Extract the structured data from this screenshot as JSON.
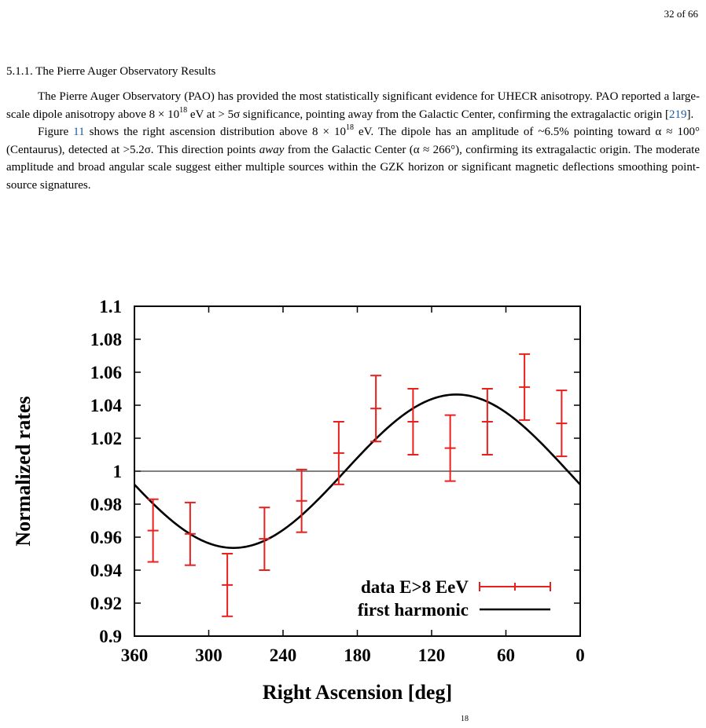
{
  "header": {
    "page_number": "32 of 66"
  },
  "section": {
    "heading": "5.1.1. The Pierre Auger Observatory Results"
  },
  "paragraphs": {
    "p1": {
      "t1": "The Pierre Auger Observatory (PAO) has provided the most statistically significant evidence for UHECR anisotropy. PAO reported a large-scale dipole anisotropy above 8 × 10",
      "exp": "18",
      "t2": " eV at > 5σ significance, pointing away from the Galactic Center, confirming the extragalactic origin [",
      "cite": "219",
      "t3": "]."
    },
    "p2": {
      "t1": "Figure ",
      "figref": "11",
      "t2": " shows the right ascension distribution above 8 × 10",
      "exp": "18",
      "t3": " eV. The dipole has an amplitude of ~6.5% pointing toward α ≈ 100° (Centaurus), detected at >5.2σ. This direction points ",
      "em": "away",
      "t4": " from the Galactic Center (α ≈ 266°), confirming its extragalactic origin.  The moderate amplitude and broad angular scale suggest either multiple sources within the GZK horizon or significant magnetic deflections smoothing point-source signatures."
    }
  },
  "caption_fragment": "18",
  "chart_data": {
    "type": "scatter",
    "xlabel": "Right Ascension [deg]",
    "ylabel": "Normalized rates",
    "xlim": [
      360,
      0
    ],
    "ylim": [
      0.9,
      1.1
    ],
    "x_ticks": [
      "360",
      "300",
      "240",
      "180",
      "120",
      "60",
      "0"
    ],
    "y_ticks": [
      "0.9",
      "0.92",
      "0.94",
      "0.96",
      "0.98",
      "1",
      "1.02",
      "1.04",
      "1.06",
      "1.08",
      "1.1"
    ],
    "reference_line_y": 1.0,
    "legend_position": "bottom-right",
    "colors": {
      "data": "#e8201e",
      "harmonic": "#000000"
    },
    "series": [
      {
        "name": "data E>8 EeV",
        "x": [
          345,
          315,
          285,
          255,
          225,
          195,
          165,
          135,
          105,
          75,
          45,
          15
        ],
        "y": [
          0.964,
          0.962,
          0.931,
          0.959,
          0.982,
          1.011,
          1.038,
          1.03,
          1.014,
          1.03,
          1.051,
          1.029
        ],
        "err": [
          0.019,
          0.019,
          0.019,
          0.019,
          0.019,
          0.019,
          0.02,
          0.02,
          0.02,
          0.02,
          0.02,
          0.02
        ]
      },
      {
        "name": "first harmonic",
        "amplitude": 0.0465,
        "phase_deg": 100
      }
    ]
  }
}
